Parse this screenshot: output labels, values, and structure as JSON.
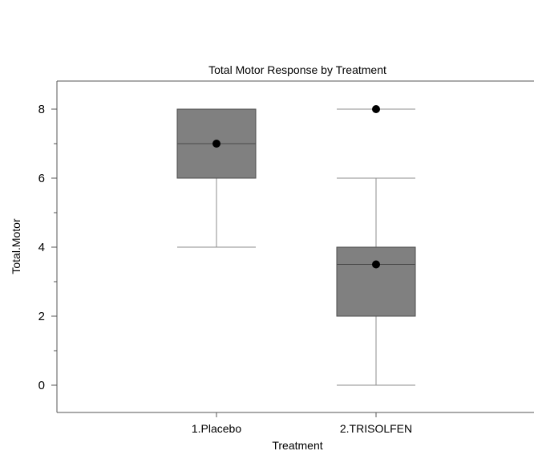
{
  "chart_data": {
    "type": "box",
    "title": "Total Motor Response by Treatment",
    "xlabel": "Treatment",
    "ylabel": "Total.Motor",
    "ylim": [
      -0.8,
      8.8
    ],
    "yticks": [
      0,
      2,
      4,
      6,
      8
    ],
    "grid": false,
    "categories": [
      "1.Placebo",
      "2.TRISOLFEN"
    ],
    "boxes": [
      {
        "category": "1.Placebo",
        "whisker_low": 4,
        "q1": 6,
        "median": 7,
        "q3": 8,
        "whisker_high": 8,
        "mean": 7,
        "outliers": []
      },
      {
        "category": "2.TRISOLFEN",
        "whisker_low": 0,
        "q1": 2,
        "median": 3.5,
        "q3": 4,
        "whisker_high": 6,
        "mean": 3.5,
        "outliers": [
          8
        ]
      }
    ],
    "colors": {
      "box_fill": "#808080",
      "box_stroke": "#4d4d4d",
      "whisker": "#8c8c8c",
      "point": "#000000",
      "axis": "#555555"
    }
  }
}
